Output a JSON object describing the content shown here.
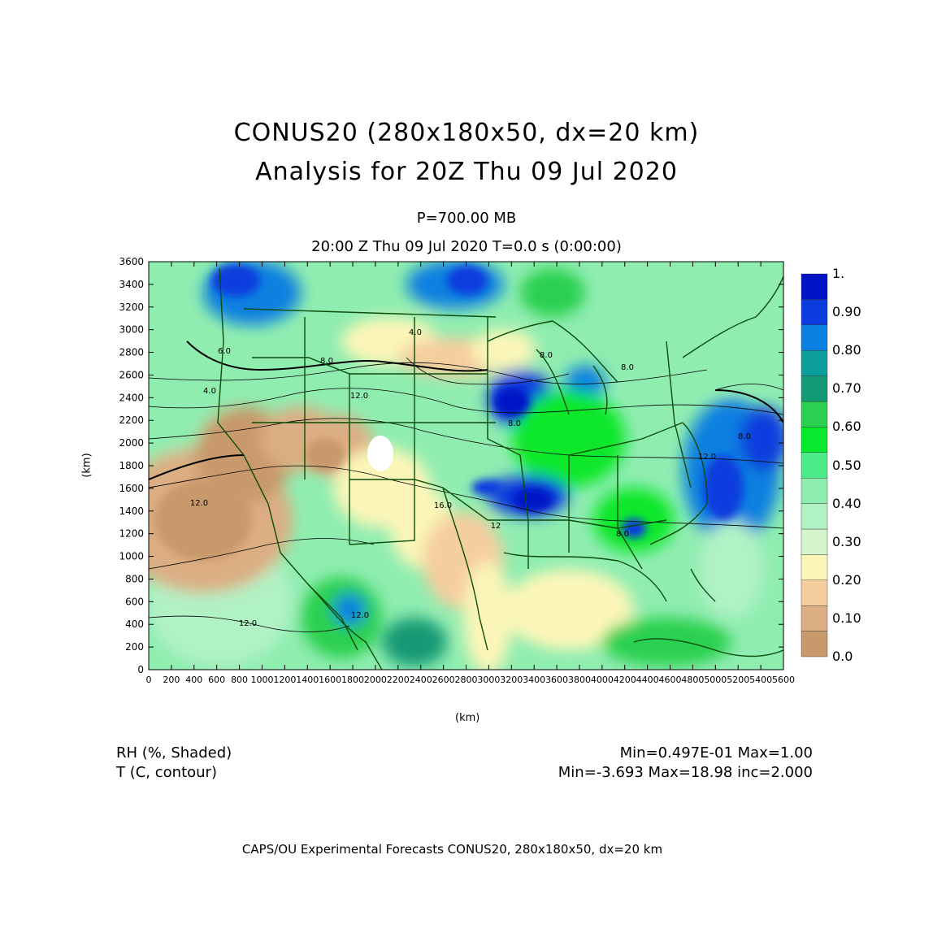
{
  "header": {
    "title_line1": "CONUS20 (280x180x50, dx=20 km)",
    "title_line2": "Analysis for 20Z Thu 09 Jul 2020",
    "level": "P=700.00 MB",
    "valid_time": "20:00 Z Thu 09 Jul 2020    T=0.0 s (0:00:00)"
  },
  "axes": {
    "x_label": "(km)",
    "y_label": "(km)",
    "x_ticks": [
      "0",
      "200",
      "400",
      "600",
      "800",
      "1000",
      "1200",
      "1400",
      "1600",
      "1800",
      "2000",
      "2200",
      "2400",
      "2600",
      "2800",
      "3000",
      "3200",
      "3400",
      "3600",
      "3800",
      "4000",
      "4200",
      "4400",
      "4600",
      "4800",
      "5000",
      "5200",
      "5400",
      "5600"
    ],
    "y_ticks": [
      "0",
      "200",
      "400",
      "600",
      "800",
      "1000",
      "1200",
      "1400",
      "1600",
      "1800",
      "2000",
      "2200",
      "2400",
      "2600",
      "2800",
      "3000",
      "3200",
      "3400",
      "3600"
    ]
  },
  "colorbar": {
    "labels": [
      "0.0",
      "0.10",
      "0.20",
      "0.30",
      "0.40",
      "0.50",
      "0.60",
      "0.70",
      "0.80",
      "0.90",
      "1."
    ],
    "colors": [
      "#c8996a",
      "#dcae83",
      "#f5ce9e",
      "#fbf6b8",
      "#d5f5cc",
      "#b1f2c5",
      "#8fedb0",
      "#4aeb88",
      "#08e82c",
      "#2cd050",
      "#139a74",
      "#0c9e9a",
      "#0a80e0",
      "#0a3cde",
      "#0014c6"
    ]
  },
  "contour_labels": [
    "4.0",
    "6.0",
    "8.0",
    "4.0",
    "8.0",
    "12.0",
    "12.0",
    "12.0",
    "8.0",
    "12",
    "8.0",
    "8.0",
    "8.0",
    "12.0",
    "16.0",
    "12.0"
  ],
  "legend": {
    "shaded_name": "RH (%, Shaded)",
    "contour_name": "T (C, contour)",
    "shaded_range": "Min=0.497E-01 Max=1.00",
    "contour_range": "Min=-3.693 Max=18.98 inc=2.000"
  },
  "footer": "CAPS/OU Experimental Forecasts  CONUS20, 280x180x50, dx=20 km"
}
